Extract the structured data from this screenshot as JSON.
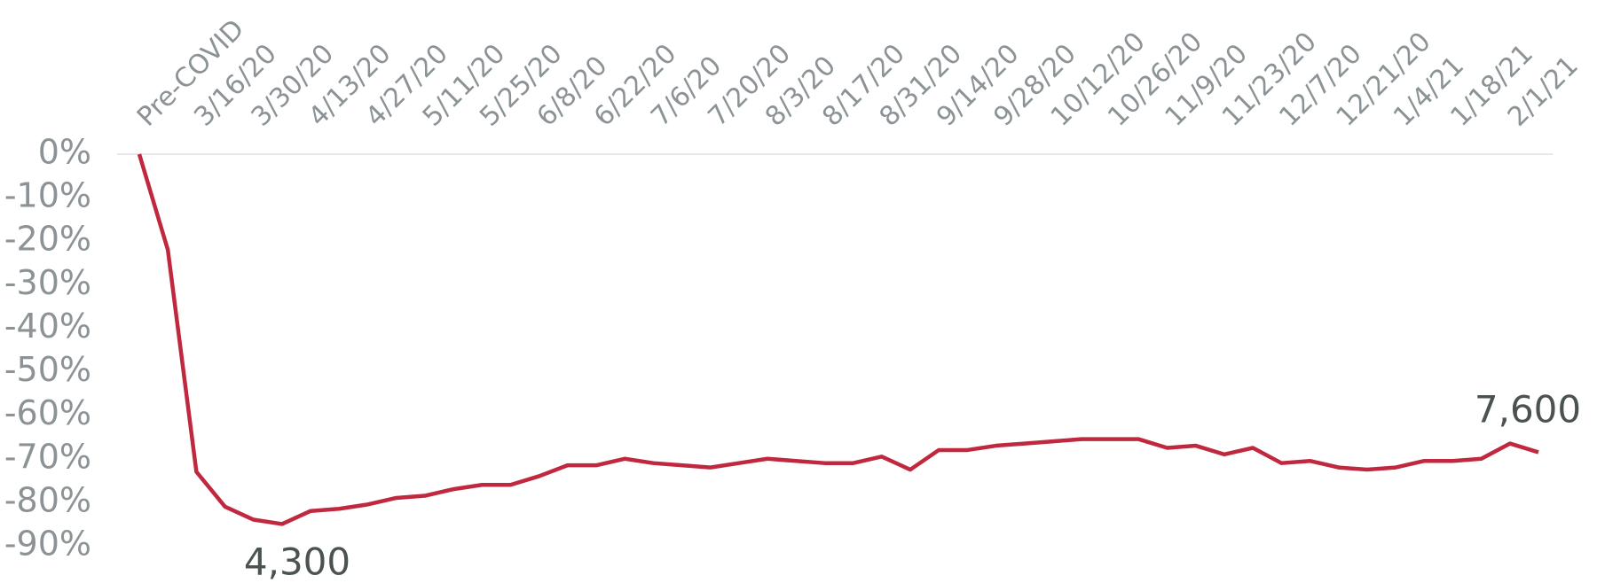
{
  "chart_data": {
    "type": "line",
    "categories": [
      "Pre-COVID",
      null,
      "3/16/20",
      null,
      "3/30/20",
      null,
      "4/13/20",
      null,
      "4/27/20",
      null,
      "5/11/20",
      null,
      "5/25/20",
      null,
      "6/8/20",
      null,
      "6/22/20",
      null,
      "7/6/20",
      null,
      "7/20/20",
      null,
      "8/3/20",
      null,
      "8/17/20",
      null,
      "8/31/20",
      null,
      "9/14/20",
      null,
      "9/28/20",
      null,
      "10/12/20",
      null,
      "10/26/20",
      null,
      "11/9/20",
      null,
      "11/23/20",
      null,
      "12/7/20",
      null,
      "12/21/20",
      null,
      "1/4/21",
      null,
      "1/18/21",
      null,
      "2/1/21",
      null
    ],
    "series": [
      {
        "color": "#c0283f",
        "values": [
          0,
          -22,
          -73,
          -81,
          -84,
          -85,
          -82,
          -81.5,
          -80.5,
          -79,
          -78.5,
          -77,
          -76,
          -76,
          -74,
          -71.5,
          -71.5,
          -70,
          -71,
          -71.5,
          -72,
          -71,
          -70,
          -70.5,
          -71,
          -71,
          -69.5,
          -72.5,
          -68,
          -68,
          -67,
          -66.5,
          -66,
          -65.5,
          -65.5,
          -65.5,
          -67.5,
          -67,
          -69,
          -67.5,
          -71,
          -70.5,
          -72,
          -72.5,
          -72,
          -70.5,
          -70.5,
          -70,
          -66.5,
          -68.5
        ]
      }
    ],
    "ylim": [
      0,
      -90
    ],
    "yticks": [
      {
        "value": 0,
        "label": "0%"
      },
      {
        "value": -10,
        "label": "-10%"
      },
      {
        "value": -20,
        "label": "-20%"
      },
      {
        "value": -30,
        "label": "-30%"
      },
      {
        "value": -40,
        "label": "-40%"
      },
      {
        "value": -50,
        "label": "-50%"
      },
      {
        "value": -60,
        "label": "-60%"
      },
      {
        "value": -70,
        "label": "-70%"
      },
      {
        "value": -80,
        "label": "-80%"
      },
      {
        "value": -90,
        "label": "-90%"
      }
    ],
    "annotations": [
      "4,300",
      "7,600"
    ]
  }
}
